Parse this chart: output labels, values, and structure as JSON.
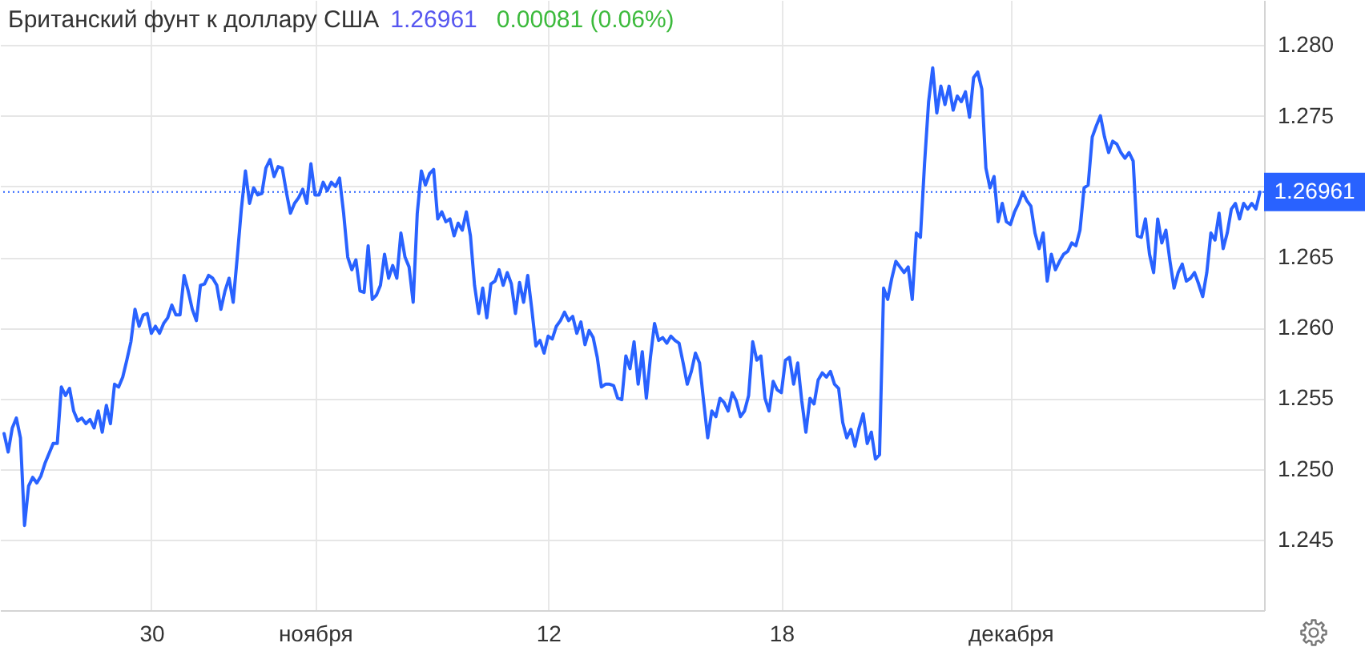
{
  "chart_data": {
    "type": "line",
    "title": "Британский фунт к доллару США",
    "annotations": [
      "1.26961",
      "0.00081 (0.06%)"
    ],
    "categories": [
      null,
      null,
      null,
      null,
      null,
      null,
      null,
      null,
      null,
      null,
      null,
      null,
      null,
      null,
      null,
      null,
      null,
      null,
      null,
      null,
      null,
      null,
      null,
      null,
      null,
      null,
      null,
      null,
      null,
      null,
      null,
      null,
      null,
      null,
      null,
      null,
      "30",
      null,
      null,
      null,
      null,
      null,
      null,
      null,
      null,
      null,
      null,
      null,
      null,
      null,
      null,
      null,
      null,
      null,
      null,
      null,
      null,
      null,
      null,
      null,
      null,
      null,
      null,
      null,
      null,
      null,
      null,
      null,
      null,
      null,
      null,
      null,
      null,
      null,
      null,
      null,
      "ноября",
      null,
      null,
      null,
      null,
      null,
      null,
      null,
      null,
      null,
      null,
      null,
      null,
      null,
      null,
      null,
      null,
      null,
      null,
      null,
      null,
      null,
      null,
      null,
      null,
      null,
      null,
      null,
      null,
      null,
      null,
      null,
      null,
      null,
      null,
      null,
      null,
      null,
      null,
      null,
      null,
      null,
      null,
      null,
      null,
      null,
      null,
      null,
      null,
      null,
      null,
      null,
      null,
      null,
      null,
      null,
      null,
      "12",
      null,
      null,
      null,
      null,
      null,
      null,
      null,
      null,
      null,
      null,
      null,
      null,
      null,
      null,
      null,
      null,
      null,
      null,
      null,
      null,
      null,
      null,
      null,
      null,
      null,
      null,
      null,
      null,
      null,
      null,
      null,
      null,
      null,
      null,
      null,
      null,
      null,
      null,
      null,
      null,
      null,
      null,
      null,
      null,
      null,
      null,
      null,
      null,
      null,
      null,
      null,
      null,
      null,
      null,
      null,
      null,
      "18",
      null,
      null,
      null,
      null,
      null,
      null,
      null,
      null,
      null,
      null,
      null,
      null,
      null,
      null,
      null,
      null,
      null,
      null,
      null,
      null,
      null,
      null,
      null,
      null,
      null,
      null,
      null,
      null,
      null,
      null,
      null,
      null,
      null,
      null,
      null,
      null,
      null,
      null,
      null,
      null,
      null,
      null,
      null,
      null,
      null,
      null,
      null,
      null,
      null,
      null,
      null,
      null,
      null,
      null,
      null,
      "декабря",
      null,
      null,
      null,
      null,
      null,
      null,
      null,
      null,
      null,
      null,
      null,
      null,
      null,
      null,
      null,
      null,
      null,
      null,
      null,
      null,
      null,
      null,
      null,
      null,
      null,
      null,
      null,
      null,
      null,
      null,
      null,
      null,
      null,
      null,
      null,
      null,
      null,
      null,
      null,
      null,
      null,
      null,
      null,
      null,
      null,
      null,
      null,
      null,
      null,
      null,
      null,
      null,
      null,
      null,
      null,
      null,
      null,
      null,
      null,
      null,
      null
    ],
    "values": [
      1.2525,
      1.2512,
      1.2529,
      1.2536,
      1.2522,
      1.246,
      1.2488,
      1.2494,
      1.249,
      1.2495,
      1.2504,
      1.2511,
      1.2518,
      1.2518,
      1.2558,
      1.2552,
      1.2557,
      1.2541,
      1.2534,
      1.2536,
      1.2532,
      1.2535,
      1.2529,
      1.2541,
      1.2526,
      1.2545,
      1.2532,
      1.256,
      1.2558,
      1.2565,
      1.2577,
      1.259,
      1.2613,
      1.2601,
      1.2609,
      1.261,
      1.2596,
      1.2601,
      1.2596,
      1.2603,
      1.2607,
      1.2616,
      1.2609,
      1.2609,
      1.2637,
      1.2626,
      1.2613,
      1.2605,
      1.263,
      1.2631,
      1.2637,
      1.2635,
      1.263,
      1.2613,
      1.2626,
      1.2635,
      1.2618,
      1.265,
      1.2684,
      1.2711,
      1.2688,
      1.2699,
      1.2694,
      1.2695,
      1.2713,
      1.2719,
      1.2707,
      1.2714,
      1.2713,
      1.2696,
      1.2681,
      1.2688,
      1.2692,
      1.2698,
      1.2688,
      1.2716,
      1.2694,
      1.2694,
      1.2703,
      1.2697,
      1.2703,
      1.27,
      1.2706,
      1.2681,
      1.265,
      1.2641,
      1.2648,
      1.2626,
      1.2625,
      1.2658,
      1.262,
      1.2623,
      1.263,
      1.2652,
      1.2635,
      1.2644,
      1.2635,
      1.2667,
      1.265,
      1.2643,
      1.2618,
      1.2681,
      1.2711,
      1.2701,
      1.2709,
      1.2712,
      1.2677,
      1.2682,
      1.2675,
      1.2677,
      1.2665,
      1.2674,
      1.2669,
      1.2682,
      1.2665,
      1.263,
      1.261,
      1.2628,
      1.2607,
      1.2631,
      1.2633,
      1.2641,
      1.263,
      1.2639,
      1.2631,
      1.261,
      1.2632,
      1.2618,
      1.2637,
      1.2613,
      1.2587,
      1.2591,
      1.2582,
      1.2594,
      1.2592,
      1.2601,
      1.2605,
      1.2611,
      1.2605,
      1.2608,
      1.2596,
      1.2604,
      1.2588,
      1.2598,
      1.2593,
      1.2579,
      1.2558,
      1.256,
      1.256,
      1.2559,
      1.255,
      1.2549,
      1.258,
      1.2571,
      1.259,
      1.256,
      1.2583,
      1.255,
      1.2579,
      1.2603,
      1.2591,
      1.2593,
      1.2589,
      1.2594,
      1.2591,
      1.2589,
      1.2575,
      1.256,
      1.2569,
      1.2582,
      1.2575,
      1.2548,
      1.2522,
      1.2541,
      1.2537,
      1.255,
      1.2547,
      1.2541,
      1.2554,
      1.2548,
      1.2537,
      1.2541,
      1.2552,
      1.259,
      1.2577,
      1.258,
      1.255,
      1.2541,
      1.2562,
      1.2556,
      1.2554,
      1.2577,
      1.2579,
      1.256,
      1.2575,
      1.2548,
      1.2526,
      1.255,
      1.2546,
      1.2563,
      1.2568,
      1.2565,
      1.2569,
      1.256,
      1.2557,
      1.2533,
      1.2522,
      1.2528,
      1.2516,
      1.2529,
      1.2539,
      1.2518,
      1.2526,
      1.2507,
      1.251,
      1.2628,
      1.262,
      1.2635,
      1.2647,
      1.2643,
      1.2639,
      1.2643,
      1.262,
      1.2667,
      1.2664,
      1.2716,
      1.276,
      1.2784,
      1.2752,
      1.2771,
      1.2758,
      1.2771,
      1.2754,
      1.2764,
      1.276,
      1.2767,
      1.2749,
      1.2777,
      1.2781,
      1.2769,
      1.2713,
      1.2699,
      1.2707,
      1.2675,
      1.2688,
      1.2675,
      1.2673,
      1.2682,
      1.2688,
      1.2696,
      1.269,
      1.2686,
      1.2667,
      1.2656,
      1.2667,
      1.2633,
      1.2652,
      1.2641,
      1.2647,
      1.2652,
      1.2654,
      1.266,
      1.2658,
      1.2669,
      1.2699,
      1.2701,
      1.2735,
      1.2743,
      1.275,
      1.2735,
      1.2724,
      1.2732,
      1.273,
      1.2724,
      1.272,
      1.2724,
      1.2718,
      1.2665,
      1.2664,
      1.2677,
      1.2652,
      1.2639,
      1.2677,
      1.266,
      1.2669,
      1.2647,
      1.2628,
      1.2639,
      1.2645,
      1.2633,
      1.2635,
      1.2639,
      1.2631,
      1.2622,
      1.2639,
      1.2667,
      1.2662,
      1.2681,
      1.2656,
      1.2667,
      1.2684,
      1.2688,
      1.2677,
      1.2688,
      1.2684,
      1.2688,
      1.2684,
      1.2696
    ],
    "color": "#2962ff",
    "ylim": [
      1.24,
      1.2832
    ],
    "yticks": [
      1.245,
      {
        "value": 1.25,
        "label": "1.250"
      },
      1.255,
      {
        "value": 1.26,
        "label": "1.260"
      },
      1.265,
      {
        "value": 1.27,
        "label": null
      },
      1.275,
      {
        "value": 1.28,
        "label": "1.280"
      }
    ],
    "grid": true,
    "ref_lines": [
      {
        "axis": "y",
        "value": 1.26961,
        "label": "1.26961",
        "color": "#2962ff",
        "line_style": "dotted"
      }
    ]
  }
}
